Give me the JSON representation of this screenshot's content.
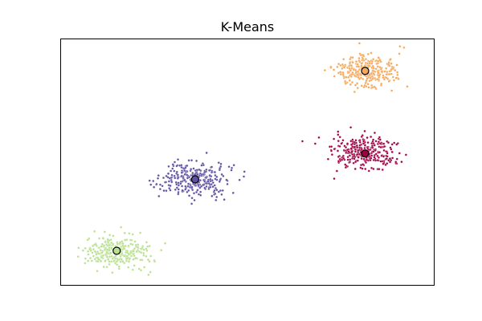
{
  "chart_data": {
    "type": "scatter",
    "title": "K-Means",
    "xlabel": "",
    "ylabel": "",
    "xlim": [
      0,
      1
    ],
    "ylim": [
      0,
      1
    ],
    "axes_ticks": false,
    "grid": false,
    "legend": "none",
    "clusters": [
      {
        "color": "#9e0142",
        "center": [
          0.815,
          0.535
        ],
        "spread": [
          0.042,
          0.034
        ],
        "n_points": 300
      },
      {
        "color": "#f5a75a",
        "center": [
          0.815,
          0.87
        ],
        "spread": [
          0.042,
          0.034
        ],
        "n_points": 300
      },
      {
        "color": "#5e4fa2",
        "center": [
          0.36,
          0.43
        ],
        "spread": [
          0.042,
          0.034
        ],
        "n_points": 300
      },
      {
        "color": "#b8e08f",
        "center": [
          0.15,
          0.14
        ],
        "spread": [
          0.042,
          0.034
        ],
        "n_points": 300
      }
    ]
  }
}
